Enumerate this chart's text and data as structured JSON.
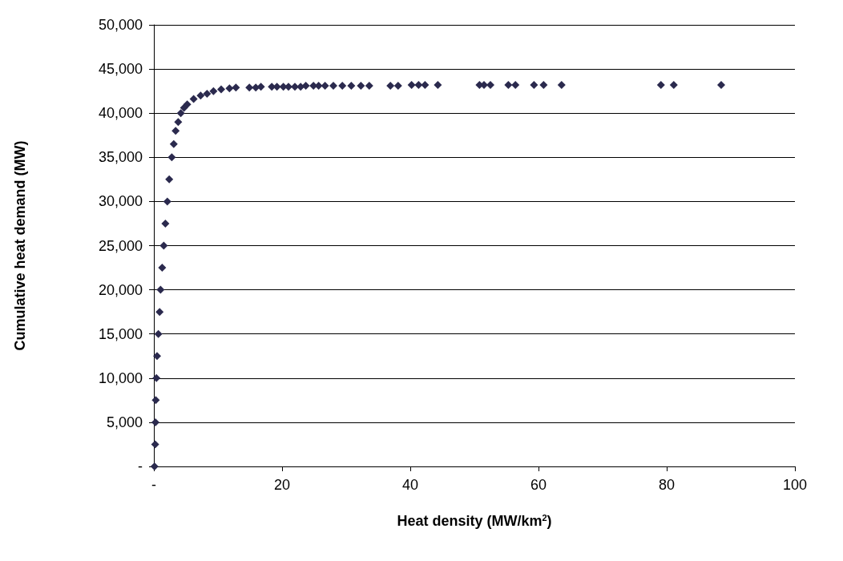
{
  "chart_data": {
    "type": "scatter",
    "xlabel": "Heat density (MW/km$^{2}$)",
    "ylabel": "Cumulative heat demand (MW)",
    "x": [
      0.1,
      0.2,
      0.25,
      0.3,
      0.4,
      0.5,
      0.7,
      0.9,
      1.05,
      1.3,
      1.55,
      1.8,
      2.1,
      2.4,
      2.8,
      3.1,
      3.4,
      3.8,
      4.2,
      4.7,
      5.2,
      6.2,
      7.3,
      8.3,
      9.3,
      10.5,
      11.8,
      12.8,
      14.9,
      15.9,
      16.7,
      18.4,
      19.2,
      20.2,
      21.0,
      22.0,
      22.9,
      23.7,
      24.9,
      25.7,
      26.7,
      28.0,
      29.4,
      30.8,
      32.3,
      33.6,
      36.9,
      38.1,
      40.2,
      41.3,
      42.3,
      44.3,
      50.8,
      51.5,
      52.5,
      55.3,
      56.4,
      59.3,
      60.8,
      63.6,
      79.1,
      81.1,
      88.5
    ],
    "series": [
      {
        "color": "#2b2a4e",
        "values": [
          0,
          2500,
          5000,
          7500,
          10000,
          12500,
          15000,
          17500,
          20000,
          22500,
          25000,
          27500,
          30000,
          32500,
          35000,
          36500,
          38000,
          39000,
          40000,
          40600,
          41000,
          41600,
          42000,
          42200,
          42500,
          42700,
          42800,
          42900,
          42900,
          42900,
          43000,
          43000,
          43000,
          43000,
          43000,
          43000,
          43000,
          43100,
          43100,
          43100,
          43100,
          43100,
          43100,
          43100,
          43100,
          43100,
          43100,
          43100,
          43200,
          43200,
          43200,
          43200,
          43200,
          43200,
          43200,
          43200,
          43200,
          43200,
          43200,
          43200,
          43200,
          43200,
          43200
        ]
      }
    ],
    "xlim": [
      0,
      100
    ],
    "xticks": [
      {
        "value": 0,
        "label": "-"
      },
      20,
      40,
      60,
      80,
      100
    ],
    "ylim": [
      0,
      50000
    ],
    "yticks": [
      {
        "value": 0,
        "label": "-"
      },
      {
        "value": 5000,
        "label": "5,000"
      },
      {
        "value": 10000,
        "label": "10,000"
      },
      {
        "value": 15000,
        "label": "15,000"
      },
      {
        "value": 20000,
        "label": "20,000"
      },
      {
        "value": 25000,
        "label": "25,000"
      },
      {
        "value": 30000,
        "label": "30,000"
      },
      {
        "value": 35000,
        "label": "35,000"
      },
      {
        "value": 40000,
        "label": "40,000"
      },
      {
        "value": 45000,
        "label": "45,000"
      },
      {
        "value": 50000,
        "label": "50,000"
      }
    ],
    "grid": "y",
    "marker": "diamond"
  }
}
